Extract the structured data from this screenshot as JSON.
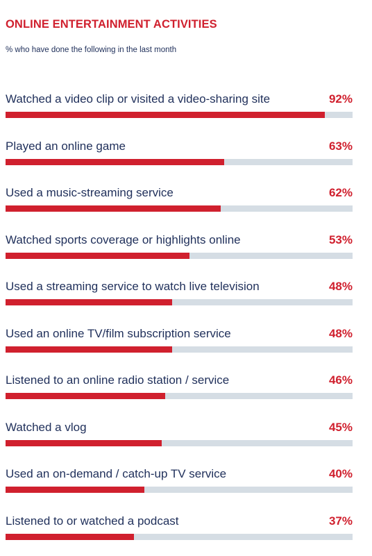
{
  "chart_data": {
    "type": "bar",
    "orientation": "horizontal",
    "title": "ONLINE ENTERTAINMENT ACTIVITIES",
    "subtitle": "% who have done the following in the last month",
    "ylim": [
      0,
      100
    ],
    "colors": {
      "accent": "#d0202e",
      "track": "#d5dde4",
      "text": "#1f2f5a"
    },
    "items": [
      {
        "label": "Watched a video clip or visited a video-sharing site",
        "value": 92,
        "value_label": "92%"
      },
      {
        "label": "Played an online game",
        "value": 63,
        "value_label": "63%"
      },
      {
        "label": "Used a music-streaming service",
        "value": 62,
        "value_label": "62%"
      },
      {
        "label": "Watched sports coverage or highlights online",
        "value": 53,
        "value_label": "53%"
      },
      {
        "label": "Used a streaming service to watch live television",
        "value": 48,
        "value_label": "48%"
      },
      {
        "label": "Used an online TV/film subscription service",
        "value": 48,
        "value_label": "48%"
      },
      {
        "label": "Listened to an online radio station / service",
        "value": 46,
        "value_label": "46%"
      },
      {
        "label": "Watched a vlog",
        "value": 45,
        "value_label": "45%"
      },
      {
        "label": "Used an on-demand / catch-up TV service",
        "value": 40,
        "value_label": "40%"
      },
      {
        "label": "Listened to or watched a podcast",
        "value": 37,
        "value_label": "37%"
      }
    ]
  }
}
